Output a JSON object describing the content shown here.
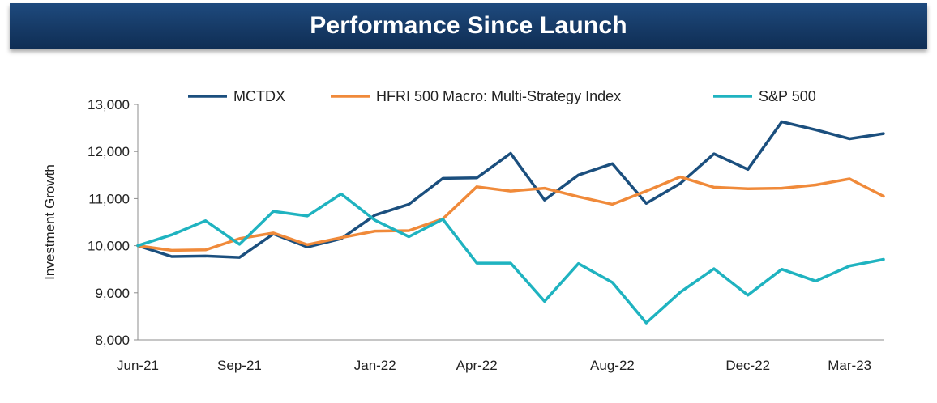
{
  "header": {
    "title": "Performance Since Launch"
  },
  "chart_data": {
    "type": "line",
    "title": "",
    "xlabel": "",
    "ylabel": "Investment Growth",
    "ylim": [
      8000,
      13000
    ],
    "yticks": [
      8000,
      9000,
      10000,
      11000,
      12000,
      13000
    ],
    "ytick_labels": [
      "8,000",
      "9,000",
      "10,000",
      "11,000",
      "12,000",
      "13,000"
    ],
    "x": [
      "Jun-21",
      "Jul-21",
      "Aug-21",
      "Sep-21",
      "Oct-21",
      "Nov-21",
      "Dec-21",
      "Jan-22",
      "Feb-22",
      "Mar-22",
      "Apr-22",
      "May-22",
      "Jun-22",
      "Jul-22",
      "Aug-22",
      "Sep-22",
      "Oct-22",
      "Nov-22",
      "Dec-22",
      "Jan-23",
      "Feb-23",
      "Mar-23",
      "Apr-23"
    ],
    "xtick_labels": [
      {
        "index": 0,
        "label": "Jun-21"
      },
      {
        "index": 3,
        "label": "Sep-21"
      },
      {
        "index": 7,
        "label": "Jan-22"
      },
      {
        "index": 10,
        "label": "Apr-22"
      },
      {
        "index": 14,
        "label": "Aug-22"
      },
      {
        "index": 18,
        "label": "Dec-22"
      },
      {
        "index": 21,
        "label": "Mar-23"
      }
    ],
    "grid": false,
    "legend_position": "top",
    "series": [
      {
        "name": "MCTDX",
        "color": "#1b4f7e",
        "values": [
          10000,
          9770,
          9780,
          9750,
          10250,
          9970,
          10150,
          10650,
          10880,
          11430,
          11440,
          11960,
          10970,
          11500,
          11740,
          10900,
          11320,
          11950,
          11620,
          12630,
          12460,
          12270,
          12380
        ]
      },
      {
        "name": "HFRI 500 Macro: Multi-Strategy Index",
        "color": "#f08a3a",
        "values": [
          10000,
          9900,
          9910,
          10150,
          10270,
          10020,
          10170,
          10310,
          10320,
          10570,
          11250,
          11160,
          11220,
          11040,
          10880,
          11160,
          11460,
          11240,
          11210,
          11220,
          11290,
          11420,
          11050
        ]
      },
      {
        "name": "S&P 500",
        "color": "#1fb3c0",
        "values": [
          10000,
          10230,
          10530,
          10030,
          10730,
          10630,
          11100,
          10540,
          10190,
          10560,
          9630,
          9630,
          8820,
          9620,
          9220,
          8360,
          9010,
          9510,
          8950,
          9500,
          9250,
          9570,
          9710
        ]
      }
    ]
  }
}
